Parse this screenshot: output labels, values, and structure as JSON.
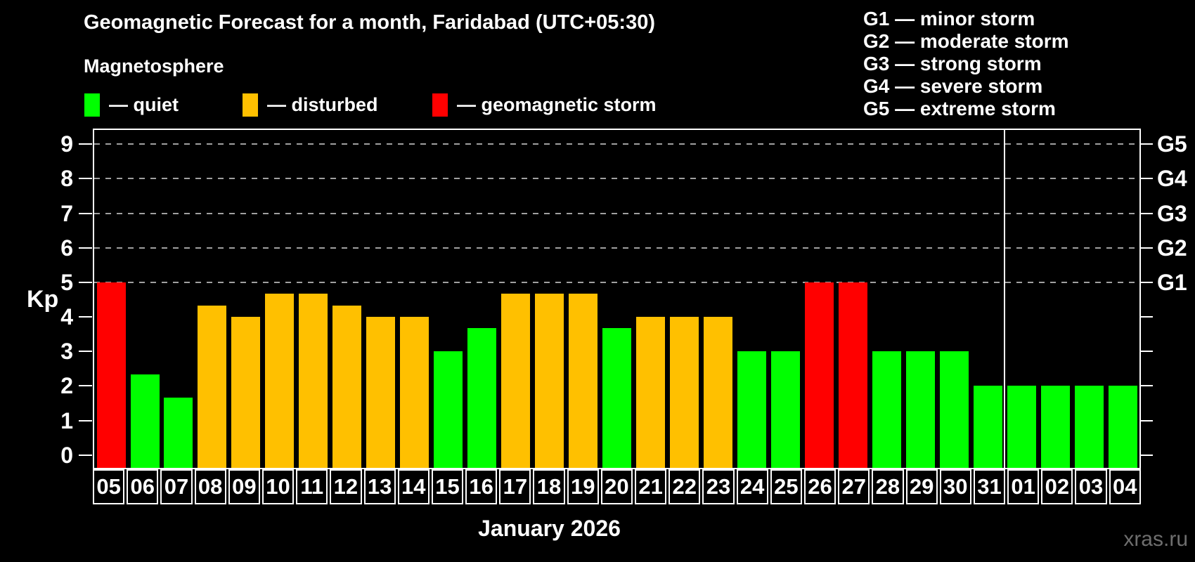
{
  "header": {
    "title": "Geomagnetic Forecast for a month, Faridabad (UTC+05:30)",
    "subtitle": "Magnetosphere"
  },
  "legend": {
    "items": [
      {
        "name": "quiet",
        "label": "— quiet",
        "color": "#00ff00"
      },
      {
        "name": "disturbed",
        "label": "— disturbed",
        "color": "#ffc000"
      },
      {
        "name": "storm",
        "label": "— geomagnetic storm",
        "color": "#ff0000"
      }
    ]
  },
  "g_legend": [
    "G1 — minor storm",
    "G2 — moderate storm",
    "G3 — strong storm",
    "G4 — severe storm",
    "G5 — extreme storm"
  ],
  "chart_data": {
    "type": "bar",
    "title": "Geomagnetic Forecast for a month, Faridabad (UTC+05:30)",
    "ylabel": "Kp",
    "xlabel": "January 2026",
    "ylim": [
      -0.37,
      9.41
    ],
    "yticks": [
      0,
      1,
      2,
      3,
      4,
      5,
      6,
      7,
      8,
      9
    ],
    "gridline_values": [
      5,
      6,
      7,
      8,
      9
    ],
    "grid": "dashed horizontal at storm levels only",
    "legend_position": "top",
    "right_axis": [
      {
        "value": 5,
        "label": "G1"
      },
      {
        "value": 6,
        "label": "G2"
      },
      {
        "value": 7,
        "label": "G3"
      },
      {
        "value": 8,
        "label": "G4"
      },
      {
        "value": 9,
        "label": "G5"
      }
    ],
    "categories": [
      "05",
      "06",
      "07",
      "08",
      "09",
      "10",
      "11",
      "12",
      "13",
      "14",
      "15",
      "16",
      "17",
      "18",
      "19",
      "20",
      "21",
      "22",
      "23",
      "24",
      "25",
      "26",
      "27",
      "28",
      "29",
      "30",
      "31",
      "01",
      "02",
      "03",
      "04"
    ],
    "values": [
      5.0,
      2.33,
      1.67,
      4.33,
      4.0,
      4.67,
      4.67,
      4.33,
      4.0,
      4.0,
      3.0,
      3.67,
      4.67,
      4.67,
      4.67,
      3.67,
      4.0,
      4.0,
      4.0,
      3.0,
      3.0,
      5.0,
      5.0,
      3.0,
      3.0,
      3.0,
      2.0,
      2.0,
      2.0,
      2.0,
      2.0
    ],
    "statuses": [
      "storm",
      "quiet",
      "quiet",
      "disturbed",
      "disturbed",
      "disturbed",
      "disturbed",
      "disturbed",
      "disturbed",
      "disturbed",
      "quiet",
      "quiet",
      "disturbed",
      "disturbed",
      "disturbed",
      "quiet",
      "disturbed",
      "disturbed",
      "disturbed",
      "quiet",
      "quiet",
      "storm",
      "storm",
      "quiet",
      "quiet",
      "quiet",
      "quiet",
      "quiet",
      "quiet",
      "quiet",
      "quiet"
    ],
    "month_separator_index": 27,
    "status_colors": {
      "quiet": "#00ff00",
      "disturbed": "#ffc000",
      "storm": "#ff0000"
    }
  },
  "watermark": "xras.ru"
}
